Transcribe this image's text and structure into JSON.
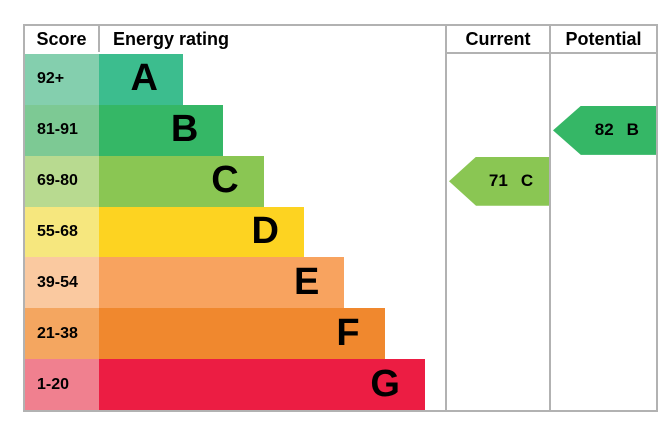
{
  "header": {
    "score": "Score",
    "energy_rating": "Energy rating",
    "current": "Current",
    "potential": "Potential"
  },
  "border_color": "#b2b2b2",
  "chart_data": {
    "type": "bar",
    "title": "EPC energy efficiency rating chart",
    "columns": [
      "Score",
      "Energy rating",
      "Current",
      "Potential"
    ],
    "bands": [
      {
        "score_range": "92+",
        "letter": "A",
        "bar_color": "#3cbd8e",
        "score_cell_color": "#84cfae"
      },
      {
        "score_range": "81-91",
        "letter": "B",
        "bar_color": "#35b766",
        "score_cell_color": "#7dc994"
      },
      {
        "score_range": "69-80",
        "letter": "C",
        "bar_color": "#8ac653",
        "score_cell_color": "#b8da90"
      },
      {
        "score_range": "55-68",
        "letter": "D",
        "bar_color": "#fdd321",
        "score_cell_color": "#f6e77e"
      },
      {
        "score_range": "39-54",
        "letter": "E",
        "bar_color": "#f8a35f",
        "score_cell_color": "#fac9a0"
      },
      {
        "score_range": "21-38",
        "letter": "F",
        "bar_color": "#f0882e",
        "score_cell_color": "#f4a660"
      },
      {
        "score_range": "1-20",
        "letter": "G",
        "bar_color": "#ec1d43",
        "score_cell_color": "#f0808f"
      }
    ],
    "current": {
      "score": "71",
      "letter": "C",
      "color": "#8ac653",
      "band_index": 2
    },
    "potential": {
      "score": "82",
      "letter": "B",
      "color": "#35b766",
      "band_index": 1
    }
  }
}
